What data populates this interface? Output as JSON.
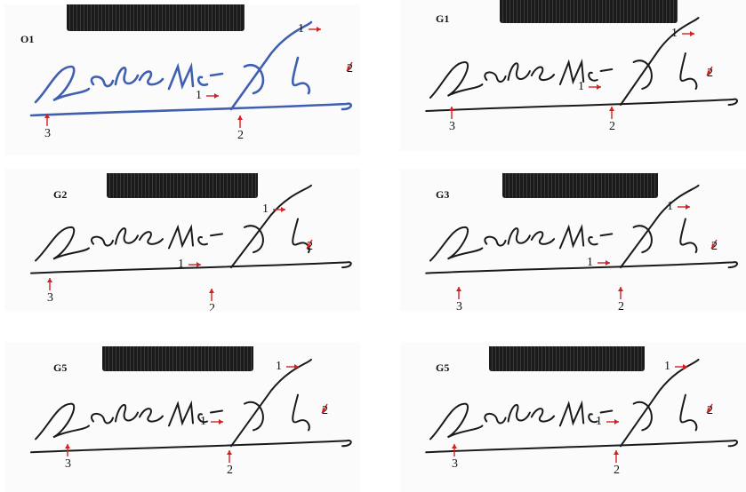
{
  "panels": [
    {
      "id": "O1",
      "label": "O1",
      "ink": "#3f5fb0",
      "marks": [
        "1",
        "1",
        "2",
        "2",
        "3"
      ]
    },
    {
      "id": "G1",
      "label": "G1",
      "ink": "#1a1a1a",
      "marks": [
        "1",
        "1",
        "2",
        "2",
        "3"
      ]
    },
    {
      "id": "G2",
      "label": "G2",
      "ink": "#1a1a1a",
      "marks": [
        "1",
        "1",
        "2",
        "2",
        "3"
      ]
    },
    {
      "id": "G3",
      "label": "G3",
      "ink": "#1a1a1a",
      "marks": [
        "1",
        "1",
        "2",
        "2",
        "3"
      ]
    },
    {
      "id": "G5a",
      "label": "G5",
      "ink": "#1a1a1a",
      "marks": [
        "1",
        "1",
        "2",
        "2",
        "3"
      ]
    },
    {
      "id": "G5b",
      "label": "G5",
      "ink": "#1a1a1a",
      "marks": [
        "1",
        "1",
        "2",
        "2",
        "3"
      ]
    }
  ],
  "colors": {
    "arrow": "#d42020",
    "clip_bar": "#1b1b1b"
  }
}
